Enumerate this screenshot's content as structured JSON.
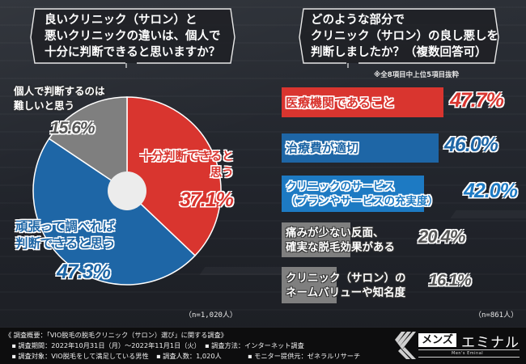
{
  "left_panel": {
    "question": "良いクリニック（サロン）と\n悪いクリニックの違いは、個人で\n十分に判断できると思いますか？",
    "sample_size": "（n=1,020人）"
  },
  "right_panel": {
    "question": "どのような部分で\nクリニック（サロン）の良し悪しを\n判断しましたか？（複数回答可）",
    "note": "※全8項目中上位5項目抜粋",
    "sample_size": "（n=861人）"
  },
  "colors": {
    "red": "#d9352f",
    "blue": "#1e66a6",
    "blue_light": "#1d7ac3",
    "gray": "#7f7f7f",
    "center": "#ececec",
    "background": "#24272d",
    "footer": "#0d0d0e"
  },
  "chart_data": [
    {
      "type": "pie",
      "title": "良いクリニック（サロン）と悪いクリニックの違いは、個人で十分に判断できると思いますか？",
      "categories": [
        "十分判断できると思う",
        "頑張って調べれば判断できると思う",
        "個人で判断するのは難しいと思う"
      ],
      "values": [
        37.1,
        47.3,
        15.6
      ],
      "value_labels": [
        "37.1%",
        "47.3%",
        "15.6%"
      ],
      "labels_display": [
        "十分判断できると\n思う",
        "頑張って調べれば\n判断できると思う",
        "個人で判断するのは\n難しいと思う"
      ],
      "colors": [
        "#d9352f",
        "#1e66a6",
        "#7f7f7f"
      ],
      "start_angle_deg": 0,
      "direction": "clockwise",
      "donut_hole": true,
      "n": "n=1,020人"
    },
    {
      "type": "bar",
      "orientation": "horizontal",
      "title": "どのような部分でクリニック（サロン）の良し悪しを判断しましたか？（複数回答可）",
      "subtitle": "※全8項目中上位5項目抜粋",
      "categories": [
        "医療機関であること",
        "治療費が適切",
        "クリニックのサービス\n（プランやサービスの充実度）",
        "痛みが少ない反面、\n確実な脱毛効果がある",
        "クリニック（サロン）の\nネームバリューや知名度"
      ],
      "values": [
        47.7,
        46.0,
        42.0,
        20.4,
        16.1
      ],
      "value_labels": [
        "47.7%",
        "46.0%",
        "42.0%",
        "20.4%",
        "16.1%"
      ],
      "colors": [
        "#d9352f",
        "#1e66a6",
        "#1d7ac3",
        "#7f7f7f",
        "#7f7f7f"
      ],
      "xlim": [
        0,
        50
      ],
      "grid": false,
      "n": "n=861人"
    }
  ],
  "footer": {
    "lines": [
      "《 調査概要：「VIO脱毛の脱毛クリニック（サロン）選び」に関する調査》",
      "　▪ 調査期間：2022年10月31日（月）～2022年11月1日（火）",
      "　▪ 調査対象：VIO脱毛をして満足している男性"
    ],
    "col2": [
      "▪ 調査方法：インターネット調査",
      "▪ 調査人数：1,020人"
    ],
    "col3": [
      "▪ モニター提供元：ゼネラルリサーチ"
    ]
  },
  "logo": {
    "box_text": "メンズ",
    "name": "エミナル",
    "sub": "Men's Eminal"
  }
}
